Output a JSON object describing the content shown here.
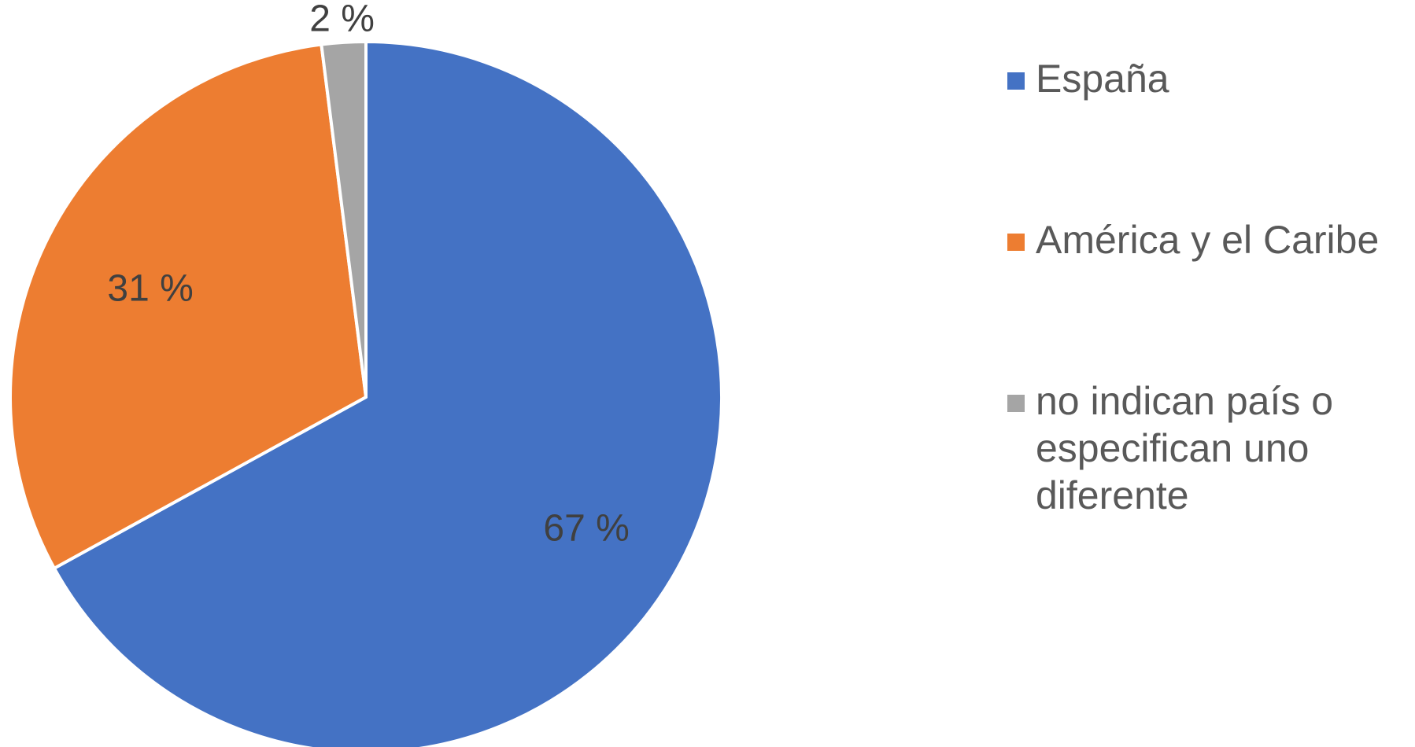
{
  "chart_data": {
    "type": "pie",
    "title": "",
    "slices": [
      {
        "label": "España",
        "value": 67,
        "display": "67 %",
        "color": "#4472C4"
      },
      {
        "label": "América y el Caribe",
        "value": 31,
        "display": "31 %",
        "color": "#ED7D31"
      },
      {
        "label": "no indican país o especifican uno diferente",
        "value": 2,
        "display": "2 %",
        "color": "#A5A5A5"
      }
    ],
    "start_angle": "12 o'clock",
    "direction": "clockwise",
    "legend_position": "right"
  }
}
